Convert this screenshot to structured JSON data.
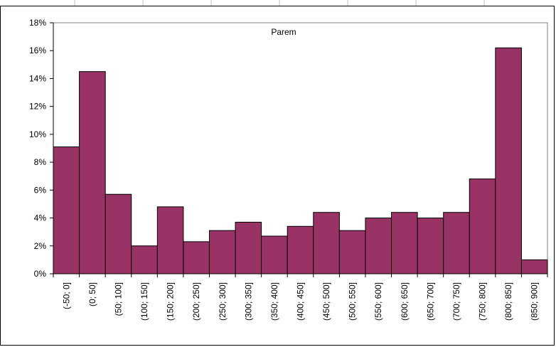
{
  "colors": {
    "bar_fill": "#993366",
    "bar_stroke": "#000000",
    "plot_border": "#808080",
    "sheet_grid": "#c0c0c0"
  },
  "chart_data": {
    "type": "bar",
    "title": "Parem",
    "xlabel": "",
    "ylabel": "",
    "ylim": [
      0,
      0.18
    ],
    "yticks": [
      0,
      0.02,
      0.04,
      0.06,
      0.08,
      0.1,
      0.12,
      0.14,
      0.16,
      0.18
    ],
    "ytick_labels": [
      "0%",
      "2%",
      "4%",
      "6%",
      "8%",
      "10%",
      "12%",
      "14%",
      "16%",
      "18%"
    ],
    "grid": false,
    "legend": "none",
    "categories": [
      "(-50; 0]",
      "(0; 50]",
      "(50; 100]",
      "(100; 150]",
      "(150; 200]",
      "(200; 250]",
      "(250; 300]",
      "(300; 350]",
      "(350; 400]",
      "(400; 450]",
      "(450; 500]",
      "(500; 550]",
      "(550; 600]",
      "(600; 650]",
      "(650; 700]",
      "(700; 750]",
      "(750; 800]",
      "(800; 850]",
      "(850; 900]"
    ],
    "values": [
      0.091,
      0.145,
      0.057,
      0.02,
      0.048,
      0.023,
      0.031,
      0.037,
      0.027,
      0.034,
      0.044,
      0.031,
      0.04,
      0.044,
      0.04,
      0.044,
      0.068,
      0.162,
      0.01
    ]
  }
}
